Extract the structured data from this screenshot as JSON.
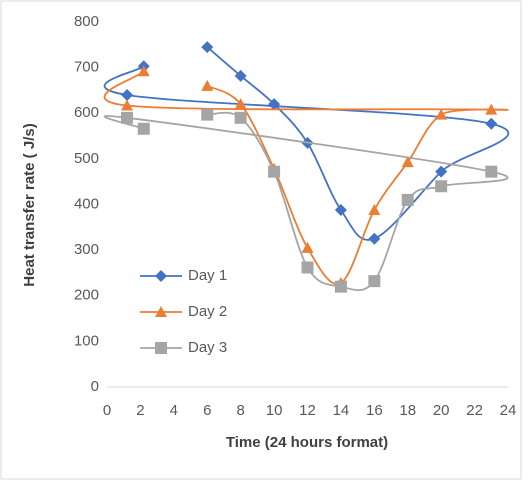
{
  "chart_data": {
    "type": "line",
    "x_label": "Time (24 hours format)",
    "y_label": "Heat transfer rate ( J/s)",
    "xlim": [
      0,
      24
    ],
    "xticks": [
      0,
      2,
      4,
      6,
      8,
      10,
      12,
      14,
      16,
      18,
      20,
      22,
      24
    ],
    "ylim": [
      0,
      800
    ],
    "yticks": [
      0,
      100,
      200,
      300,
      400,
      500,
      600,
      700,
      800
    ],
    "smooth": true,
    "series": [
      {
        "name": "Day 1",
        "color": "#4472c4",
        "marker": "diamond",
        "x": [
          6,
          8,
          10,
          12,
          14,
          16,
          20,
          23,
          1.2,
          2.2
        ],
        "values": [
          745,
          682,
          620,
          535,
          388,
          325,
          472,
          577,
          640,
          703
        ]
      },
      {
        "name": "Day 2",
        "color": "#ed7d31",
        "marker": "triangle",
        "x": [
          6,
          8,
          10,
          12,
          14,
          16,
          18,
          20,
          23,
          1.2,
          2.2
        ],
        "values": [
          660,
          620,
          478,
          305,
          228,
          388,
          493,
          597,
          608,
          617,
          692
        ]
      },
      {
        "name": "Day 3",
        "color": "#a5a5a5",
        "marker": "square",
        "x": [
          6,
          8,
          10,
          12,
          14,
          16,
          18,
          20,
          23,
          1.2,
          2.2
        ],
        "values": [
          597,
          590,
          472,
          262,
          220,
          232,
          410,
          440,
          472,
          590,
          566
        ]
      }
    ]
  }
}
